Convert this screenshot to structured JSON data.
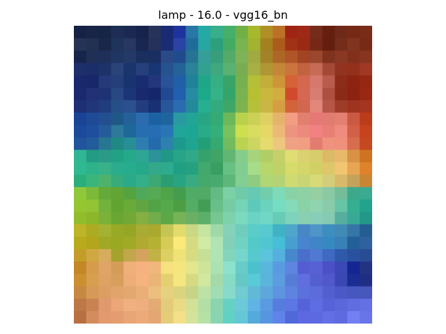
{
  "figure": {
    "title": "lamp - 16.0 - vgg16_bn"
  },
  "image": {
    "description_colors": {
      "grid_size": 24,
      "anchors": [
        {
          "r": 0,
          "c": 0,
          "color": "#1e2b4c"
        },
        {
          "r": 0,
          "c": 6,
          "color": "#1f2a52"
        },
        {
          "r": 0,
          "c": 8,
          "color": "#2236a0"
        },
        {
          "r": 0,
          "c": 10,
          "color": "#20a6a0"
        },
        {
          "r": 0,
          "c": 12,
          "color": "#45b06a"
        },
        {
          "r": 0,
          "c": 14,
          "color": "#a6b82c"
        },
        {
          "r": 0,
          "c": 16,
          "color": "#b46a1e"
        },
        {
          "r": 0,
          "c": 17,
          "color": "#9b1e10"
        },
        {
          "r": 0,
          "c": 20,
          "color": "#6a2414"
        },
        {
          "r": 0,
          "c": 23,
          "color": "#7a2e1a"
        },
        {
          "r": 5,
          "c": 0,
          "color": "#1b2a6e"
        },
        {
          "r": 5,
          "c": 6,
          "color": "#1d2d72"
        },
        {
          "r": 5,
          "c": 8,
          "color": "#2a67b6"
        },
        {
          "r": 5,
          "c": 10,
          "color": "#1fae8e"
        },
        {
          "r": 5,
          "c": 12,
          "color": "#38a86e"
        },
        {
          "r": 5,
          "c": 14,
          "color": "#b8c032"
        },
        {
          "r": 5,
          "c": 16,
          "color": "#d4b040"
        },
        {
          "r": 5,
          "c": 17,
          "color": "#c93e24"
        },
        {
          "r": 5,
          "c": 19,
          "color": "#e0857c"
        },
        {
          "r": 5,
          "c": 21,
          "color": "#8a2816"
        },
        {
          "r": 5,
          "c": 23,
          "color": "#9a2a16"
        },
        {
          "r": 8,
          "c": 0,
          "color": "#1f4c9e"
        },
        {
          "r": 8,
          "c": 6,
          "color": "#246ab0"
        },
        {
          "r": 8,
          "c": 9,
          "color": "#1fa898"
        },
        {
          "r": 8,
          "c": 11,
          "color": "#2aa66e"
        },
        {
          "r": 8,
          "c": 13,
          "color": "#cde050"
        },
        {
          "r": 8,
          "c": 15,
          "color": "#efe070"
        },
        {
          "r": 8,
          "c": 17,
          "color": "#f29a86"
        },
        {
          "r": 8,
          "c": 19,
          "color": "#ec7a7a"
        },
        {
          "r": 8,
          "c": 21,
          "color": "#ef8a7e"
        },
        {
          "r": 8,
          "c": 23,
          "color": "#c2401a"
        },
        {
          "r": 11,
          "c": 0,
          "color": "#2ab38a"
        },
        {
          "r": 11,
          "c": 4,
          "color": "#24a88a"
        },
        {
          "r": 11,
          "c": 8,
          "color": "#25a487"
        },
        {
          "r": 11,
          "c": 11,
          "color": "#3ba063"
        },
        {
          "r": 11,
          "c": 13,
          "color": "#8ad69a"
        },
        {
          "r": 11,
          "c": 15,
          "color": "#b5d46a"
        },
        {
          "r": 11,
          "c": 17,
          "color": "#d8dc6a"
        },
        {
          "r": 11,
          "c": 19,
          "color": "#d6d66a"
        },
        {
          "r": 11,
          "c": 21,
          "color": "#f0c470"
        },
        {
          "r": 11,
          "c": 23,
          "color": "#d87c26"
        },
        {
          "r": 14,
          "c": 0,
          "color": "#8fc02c"
        },
        {
          "r": 14,
          "c": 3,
          "color": "#6aac38"
        },
        {
          "r": 14,
          "c": 7,
          "color": "#4fa244"
        },
        {
          "r": 14,
          "c": 10,
          "color": "#48a15a"
        },
        {
          "r": 14,
          "c": 12,
          "color": "#7ed2aa"
        },
        {
          "r": 14,
          "c": 14,
          "color": "#66d0c2"
        },
        {
          "r": 14,
          "c": 16,
          "color": "#6ed4ba"
        },
        {
          "r": 14,
          "c": 18,
          "color": "#8ad2a8"
        },
        {
          "r": 14,
          "c": 20,
          "color": "#8ed0b0"
        },
        {
          "r": 14,
          "c": 22,
          "color": "#3fb89a"
        },
        {
          "r": 14,
          "c": 23,
          "color": "#1f9e8a"
        },
        {
          "r": 17,
          "c": 0,
          "color": "#b8ac1e"
        },
        {
          "r": 17,
          "c": 3,
          "color": "#9aaa22"
        },
        {
          "r": 17,
          "c": 6,
          "color": "#aeaa2c"
        },
        {
          "r": 17,
          "c": 8,
          "color": "#f2e070"
        },
        {
          "r": 17,
          "c": 10,
          "color": "#cde6a0"
        },
        {
          "r": 17,
          "c": 12,
          "color": "#8ad8c0"
        },
        {
          "r": 17,
          "c": 14,
          "color": "#5ad0cc"
        },
        {
          "r": 17,
          "c": 16,
          "color": "#3fb8d0"
        },
        {
          "r": 17,
          "c": 18,
          "color": "#4a86d0"
        },
        {
          "r": 17,
          "c": 20,
          "color": "#3c90c8"
        },
        {
          "r": 17,
          "c": 22,
          "color": "#2a6aa0"
        },
        {
          "r": 17,
          "c": 23,
          "color": "#2a5c9a"
        },
        {
          "r": 19,
          "c": 0,
          "color": "#c68a2a"
        },
        {
          "r": 19,
          "c": 2,
          "color": "#e0a466"
        },
        {
          "r": 19,
          "c": 5,
          "color": "#eeaa78"
        },
        {
          "r": 19,
          "c": 8,
          "color": "#f0de76"
        },
        {
          "r": 19,
          "c": 10,
          "color": "#cfe69a"
        },
        {
          "r": 19,
          "c": 12,
          "color": "#86dcc6"
        },
        {
          "r": 19,
          "c": 14,
          "color": "#54cad6"
        },
        {
          "r": 19,
          "c": 16,
          "color": "#5a9ae0"
        },
        {
          "r": 19,
          "c": 18,
          "color": "#5a62d6"
        },
        {
          "r": 19,
          "c": 20,
          "color": "#5256cc"
        },
        {
          "r": 19,
          "c": 22,
          "color": "#1a2a98"
        },
        {
          "r": 19,
          "c": 23,
          "color": "#223080"
        },
        {
          "r": 23,
          "c": 0,
          "color": "#b87242"
        },
        {
          "r": 23,
          "c": 2,
          "color": "#eaa276"
        },
        {
          "r": 23,
          "c": 5,
          "color": "#eaa878"
        },
        {
          "r": 23,
          "c": 8,
          "color": "#ecd880"
        },
        {
          "r": 23,
          "c": 10,
          "color": "#b8e4a8"
        },
        {
          "r": 23,
          "c": 12,
          "color": "#6ad8cc"
        },
        {
          "r": 23,
          "c": 14,
          "color": "#5ab0e0"
        },
        {
          "r": 23,
          "c": 16,
          "color": "#5a7ee4"
        },
        {
          "r": 23,
          "c": 18,
          "color": "#5460da"
        },
        {
          "r": 23,
          "c": 20,
          "color": "#5a66dc"
        },
        {
          "r": 23,
          "c": 22,
          "color": "#6a78ec"
        },
        {
          "r": 23,
          "c": 23,
          "color": "#6a76ea"
        }
      ]
    }
  }
}
